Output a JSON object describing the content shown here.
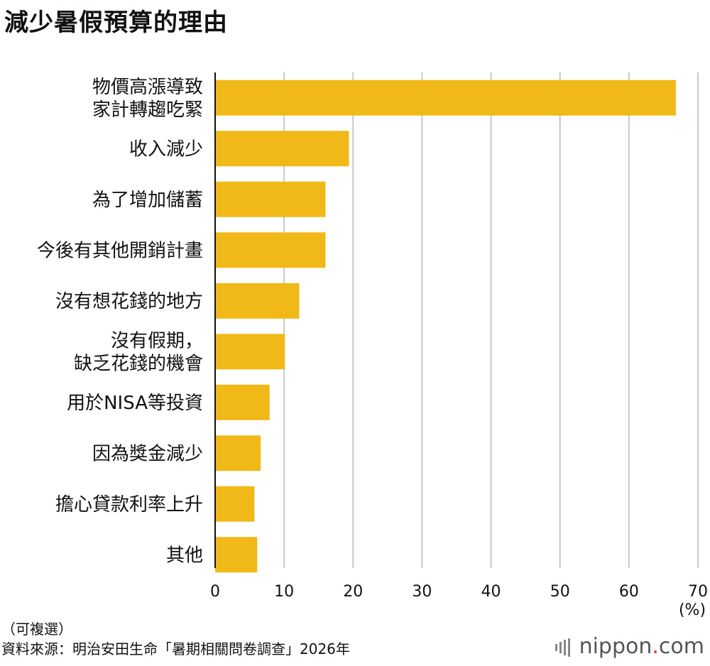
{
  "chart_data": {
    "type": "bar",
    "orientation": "horizontal",
    "title": "減少暑假預算的理由",
    "categories": [
      [
        "物價高漲導致",
        "家計轉趨吃緊"
      ],
      [
        "收入減少"
      ],
      [
        "為了增加儲蓄"
      ],
      [
        "今後有其他開銷計畫"
      ],
      [
        "沒有想花錢的地方"
      ],
      [
        "沒有假期，",
        "缺乏花錢的機會"
      ],
      [
        "用於NISA等投資"
      ],
      [
        "因為獎金減少"
      ],
      [
        "擔心貸款利率上升"
      ],
      [
        "其他"
      ]
    ],
    "values": [
      66.8,
      19.4,
      16.0,
      16.0,
      12.2,
      10.1,
      7.9,
      6.6,
      5.7,
      6.1
    ],
    "xlim": [
      0,
      70
    ],
    "xticks": [
      0,
      10,
      20,
      30,
      40,
      50,
      60,
      70
    ],
    "unit_label": "(%)",
    "grid": true,
    "bar_color": "#f0b918",
    "grid_color": "#c8c8c8"
  },
  "footer": {
    "note": "（可複選）",
    "source": "資料來源：明治安田生命「暑期相關問卷調查」2026年"
  },
  "logo": {
    "text": "nippon",
    "dot": ".",
    "suffix": "com"
  }
}
